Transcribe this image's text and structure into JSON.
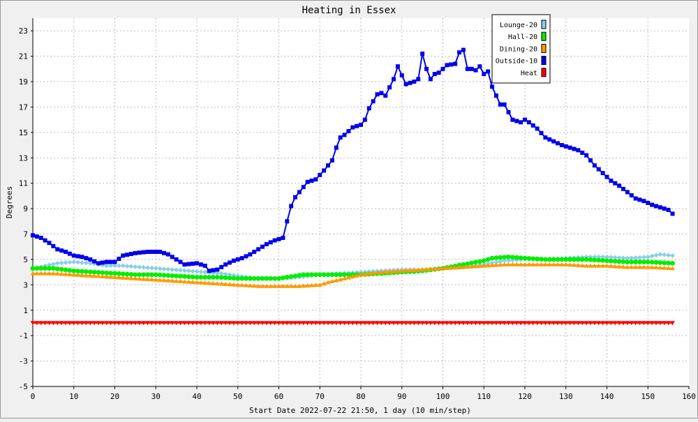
{
  "chart_data": {
    "type": "line",
    "title": "Heating in Essex",
    "xlabel": "Start Date 2022-07-22 21:50, 1 day (10 min/step)",
    "ylabel": "Degrees",
    "xlim": [
      0,
      160
    ],
    "ylim": [
      -5,
      24
    ],
    "x_ticks": [
      0,
      10,
      20,
      30,
      40,
      50,
      60,
      70,
      80,
      90,
      100,
      110,
      120,
      130,
      140,
      150,
      160
    ],
    "y_ticks": [
      -5,
      -3,
      -1,
      1,
      3,
      5,
      7,
      9,
      11,
      13,
      15,
      17,
      19,
      21,
      23
    ],
    "grid": true,
    "legend_position": "top-right",
    "series": [
      {
        "name": "Lounge-20",
        "color": "#87ceeb",
        "marker": "diamond",
        "points": [
          [
            0,
            4.2
          ],
          [
            3,
            4.5
          ],
          [
            6,
            4.7
          ],
          [
            10,
            4.8
          ],
          [
            14,
            4.7
          ],
          [
            18,
            4.5
          ],
          [
            22,
            4.5
          ],
          [
            26,
            4.4
          ],
          [
            30,
            4.3
          ],
          [
            34,
            4.2
          ],
          [
            38,
            4.1
          ],
          [
            42,
            4.0
          ],
          [
            46,
            3.9
          ],
          [
            50,
            3.7
          ],
          [
            55,
            3.5
          ],
          [
            60,
            3.5
          ],
          [
            65,
            3.6
          ],
          [
            70,
            3.8
          ],
          [
            75,
            3.9
          ],
          [
            80,
            4.0
          ],
          [
            85,
            4.1
          ],
          [
            90,
            4.2
          ],
          [
            95,
            4.2
          ],
          [
            100,
            4.3
          ],
          [
            105,
            4.4
          ],
          [
            110,
            4.6
          ],
          [
            115,
            4.9
          ],
          [
            120,
            5.0
          ],
          [
            125,
            5.0
          ],
          [
            130,
            5.1
          ],
          [
            135,
            5.2
          ],
          [
            140,
            5.2
          ],
          [
            145,
            5.1
          ],
          [
            150,
            5.2
          ],
          [
            153,
            5.4
          ],
          [
            156,
            5.3
          ]
        ]
      },
      {
        "name": "Hall-20",
        "color": "#00ee00",
        "marker": "circle",
        "points": [
          [
            0,
            4.3
          ],
          [
            5,
            4.3
          ],
          [
            10,
            4.1
          ],
          [
            15,
            4.0
          ],
          [
            20,
            3.9
          ],
          [
            25,
            3.8
          ],
          [
            30,
            3.8
          ],
          [
            35,
            3.7
          ],
          [
            40,
            3.6
          ],
          [
            45,
            3.6
          ],
          [
            50,
            3.5
          ],
          [
            55,
            3.5
          ],
          [
            60,
            3.5
          ],
          [
            62,
            3.6
          ],
          [
            66,
            3.8
          ],
          [
            70,
            3.8
          ],
          [
            75,
            3.8
          ],
          [
            80,
            3.8
          ],
          [
            85,
            3.9
          ],
          [
            90,
            4.0
          ],
          [
            95,
            4.1
          ],
          [
            100,
            4.3
          ],
          [
            105,
            4.6
          ],
          [
            110,
            4.9
          ],
          [
            112,
            5.1
          ],
          [
            116,
            5.2
          ],
          [
            120,
            5.1
          ],
          [
            125,
            5.0
          ],
          [
            130,
            5.0
          ],
          [
            135,
            5.0
          ],
          [
            140,
            4.9
          ],
          [
            145,
            4.8
          ],
          [
            150,
            4.8
          ],
          [
            156,
            4.7
          ]
        ]
      },
      {
        "name": "Dining-20",
        "color": "#ff9900",
        "marker": "triangle-up",
        "points": [
          [
            0,
            3.9
          ],
          [
            5,
            3.9
          ],
          [
            10,
            3.8
          ],
          [
            15,
            3.7
          ],
          [
            20,
            3.6
          ],
          [
            25,
            3.5
          ],
          [
            30,
            3.4
          ],
          [
            35,
            3.3
          ],
          [
            40,
            3.2
          ],
          [
            45,
            3.1
          ],
          [
            50,
            3.0
          ],
          [
            55,
            2.9
          ],
          [
            60,
            2.9
          ],
          [
            65,
            2.9
          ],
          [
            70,
            3.0
          ],
          [
            72,
            3.2
          ],
          [
            76,
            3.5
          ],
          [
            80,
            3.8
          ],
          [
            85,
            4.0
          ],
          [
            90,
            4.1
          ],
          [
            95,
            4.2
          ],
          [
            100,
            4.3
          ],
          [
            105,
            4.4
          ],
          [
            110,
            4.5
          ],
          [
            115,
            4.6
          ],
          [
            120,
            4.6
          ],
          [
            125,
            4.6
          ],
          [
            130,
            4.6
          ],
          [
            135,
            4.5
          ],
          [
            140,
            4.5
          ],
          [
            145,
            4.4
          ],
          [
            150,
            4.4
          ],
          [
            156,
            4.3
          ]
        ]
      },
      {
        "name": "Outside-10",
        "color": "#0000ee",
        "marker": "square",
        "points": [
          [
            0,
            6.9
          ],
          [
            2,
            6.7
          ],
          [
            4,
            6.3
          ],
          [
            6,
            5.8
          ],
          [
            8,
            5.6
          ],
          [
            10,
            5.3
          ],
          [
            12,
            5.2
          ],
          [
            14,
            5.0
          ],
          [
            16,
            4.7
          ],
          [
            18,
            4.8
          ],
          [
            20,
            4.8
          ],
          [
            22,
            5.3
          ],
          [
            25,
            5.5
          ],
          [
            28,
            5.6
          ],
          [
            31,
            5.6
          ],
          [
            33,
            5.4
          ],
          [
            35,
            5.0
          ],
          [
            37,
            4.6
          ],
          [
            40,
            4.7
          ],
          [
            42,
            4.5
          ],
          [
            43,
            4.1
          ],
          [
            45,
            4.2
          ],
          [
            47,
            4.6
          ],
          [
            49,
            4.9
          ],
          [
            51,
            5.1
          ],
          [
            53,
            5.4
          ],
          [
            55,
            5.8
          ],
          [
            57,
            6.2
          ],
          [
            59,
            6.5
          ],
          [
            61,
            6.7
          ],
          [
            62,
            8.0
          ],
          [
            63,
            9.2
          ],
          [
            64,
            9.9
          ],
          [
            66,
            10.7
          ],
          [
            67,
            11.1
          ],
          [
            69,
            11.3
          ],
          [
            71,
            12.0
          ],
          [
            73,
            12.8
          ],
          [
            74,
            13.8
          ],
          [
            75,
            14.6
          ],
          [
            76,
            14.8
          ],
          [
            78,
            15.4
          ],
          [
            80,
            15.6
          ],
          [
            81,
            16.0
          ],
          [
            82,
            16.9
          ],
          [
            84,
            18.0
          ],
          [
            85,
            18.1
          ],
          [
            86,
            17.9
          ],
          [
            88,
            19.2
          ],
          [
            89,
            20.2
          ],
          [
            90,
            19.5
          ],
          [
            91,
            18.8
          ],
          [
            93,
            19.0
          ],
          [
            94,
            19.2
          ],
          [
            95,
            21.2
          ],
          [
            96,
            20.0
          ],
          [
            97,
            19.2
          ],
          [
            98,
            19.6
          ],
          [
            99,
            19.7
          ],
          [
            101,
            20.3
          ],
          [
            103,
            20.4
          ],
          [
            104,
            21.3
          ],
          [
            105,
            21.5
          ],
          [
            106,
            20.0
          ],
          [
            107,
            20.0
          ],
          [
            108,
            19.9
          ],
          [
            109,
            20.2
          ],
          [
            110,
            19.6
          ],
          [
            111,
            19.8
          ],
          [
            112,
            18.6
          ],
          [
            113,
            17.9
          ],
          [
            114,
            17.2
          ],
          [
            115,
            17.2
          ],
          [
            117,
            16.0
          ],
          [
            119,
            15.8
          ],
          [
            120,
            16.0
          ],
          [
            121,
            15.8
          ],
          [
            123,
            15.3
          ],
          [
            125,
            14.6
          ],
          [
            127,
            14.3
          ],
          [
            129,
            14.0
          ],
          [
            131,
            13.8
          ],
          [
            133,
            13.6
          ],
          [
            135,
            13.2
          ],
          [
            137,
            12.4
          ],
          [
            139,
            11.8
          ],
          [
            141,
            11.2
          ],
          [
            143,
            10.8
          ],
          [
            145,
            10.3
          ],
          [
            147,
            9.8
          ],
          [
            149,
            9.6
          ],
          [
            151,
            9.3
          ],
          [
            153,
            9.1
          ],
          [
            155,
            8.9
          ],
          [
            156,
            8.6
          ]
        ]
      },
      {
        "name": "Heat",
        "color": "#ff0000",
        "marker": "triangle-down",
        "points": [
          [
            0,
            0
          ],
          [
            156,
            0
          ]
        ]
      }
    ]
  }
}
